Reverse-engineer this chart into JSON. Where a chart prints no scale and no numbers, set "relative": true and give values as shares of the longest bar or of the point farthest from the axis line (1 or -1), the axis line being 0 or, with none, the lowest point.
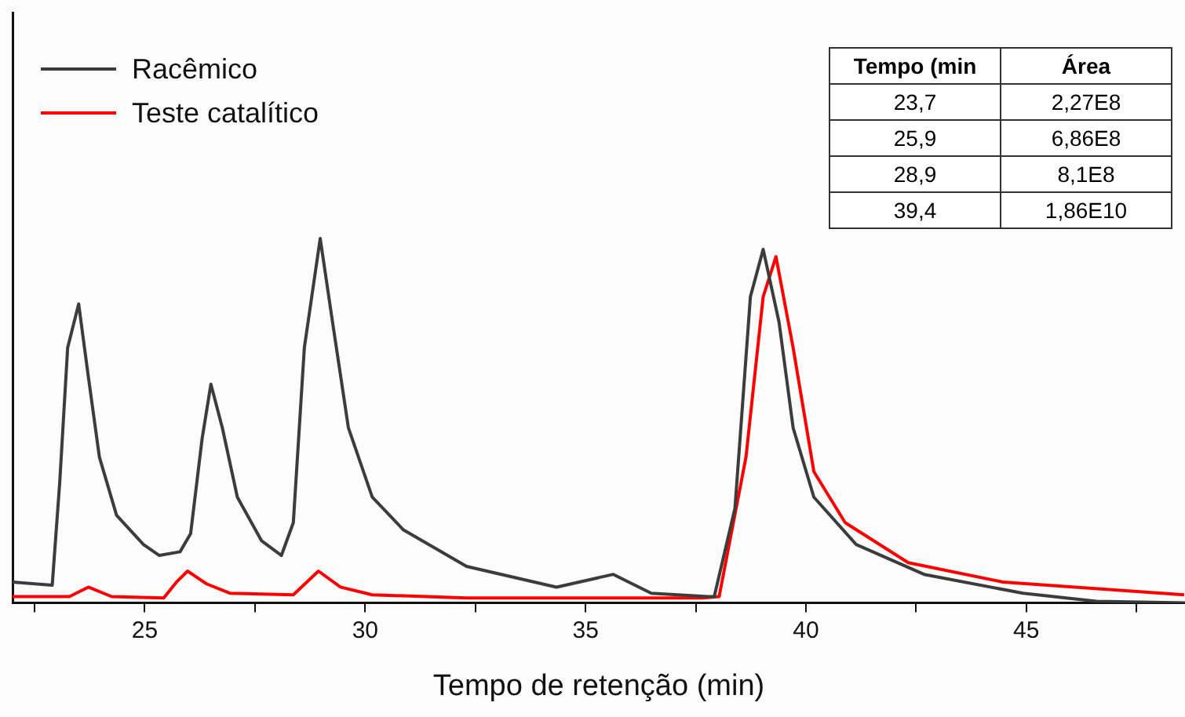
{
  "chart_data": {
    "type": "line",
    "relative": true,
    "xlabel": "Tempo de retenção (min)",
    "xlim": [
      22,
      48.6
    ],
    "xticks": [
      {
        "value": 22.5,
        "label": null
      },
      25,
      {
        "value": 27.5,
        "label": null
      },
      30,
      {
        "value": 32.5,
        "label": null
      },
      35,
      {
        "value": 37.5,
        "label": null
      },
      40,
      {
        "value": 42.5,
        "label": null
      },
      45,
      {
        "value": 47.5,
        "label": null
      }
    ],
    "legend": "top left",
    "grid": false,
    "marker": "none",
    "line_style": "solid",
    "annotations": [
      "Tempo (min",
      "Área",
      "23,7",
      "2,27E8",
      "25,9",
      "6,86E8",
      "28,9",
      "8,1E8",
      "39,4",
      "1,86E10"
    ],
    "series": [
      {
        "name": "Racêmico",
        "color": "#3c3c3c",
        "x": [
          22,
          22.9,
          23.07,
          23.25,
          23.5,
          23.72,
          23.97,
          24.36,
          24.97,
          25.33,
          25.8,
          26.04,
          26.3,
          26.5,
          26.76,
          27.1,
          27.65,
          28.1,
          28.37,
          28.62,
          28.98,
          29.26,
          29.62,
          30.16,
          30.87,
          32.3,
          34.34,
          35.63,
          36.49,
          37.78,
          37.92,
          38.39,
          38.74,
          39.03,
          39.39,
          39.71,
          40.18,
          41.14,
          42.68,
          44.93,
          46.6,
          48.6
        ],
        "values": [
          0.057,
          0.048,
          0.33,
          0.7,
          0.82,
          0.62,
          0.4,
          0.24,
          0.16,
          0.13,
          0.14,
          0.19,
          0.45,
          0.6,
          0.48,
          0.29,
          0.17,
          0.13,
          0.22,
          0.7,
          1,
          0.77,
          0.48,
          0.29,
          0.2,
          0.1,
          0.043,
          0.078,
          0.026,
          0.017,
          0.017,
          0.26,
          0.84,
          0.97,
          0.77,
          0.48,
          0.29,
          0.16,
          0.078,
          0.026,
          0.004,
          0
        ]
      },
      {
        "name": "Teste catalítico",
        "color": "#ff0000",
        "x": [
          22,
          23.29,
          23.72,
          24.25,
          25.43,
          25.72,
          25.97,
          26.4,
          26.94,
          28.37,
          28.94,
          29.44,
          30.16,
          32.3,
          37.67,
          38.03,
          38.64,
          39.03,
          39.32,
          39.71,
          40.18,
          40.89,
          42.32,
          44.47,
          48.58
        ],
        "values": [
          0.017,
          0.017,
          0.043,
          0.017,
          0.013,
          0.057,
          0.087,
          0.052,
          0.026,
          0.022,
          0.087,
          0.043,
          0.022,
          0.013,
          0.013,
          0.017,
          0.4,
          0.84,
          0.95,
          0.7,
          0.36,
          0.22,
          0.11,
          0.057,
          0.022
        ]
      }
    ]
  }
}
